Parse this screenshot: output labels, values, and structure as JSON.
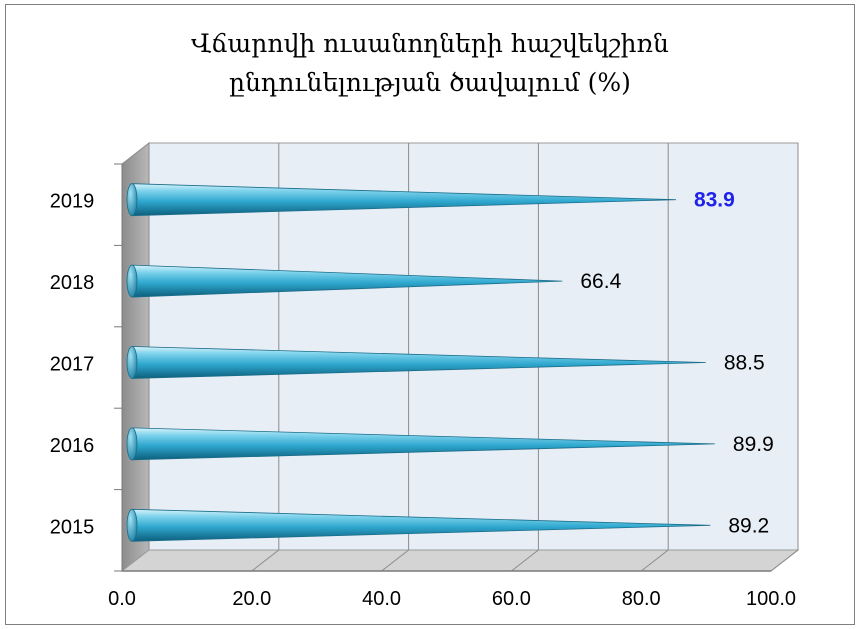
{
  "chart_data": {
    "type": "bar",
    "orientation": "horizontal",
    "bar_shape": "cone",
    "title_lines": [
      "Վճարովի ուսանողների հաշվեկշիռն",
      "ընդունելության ծավալում (%)"
    ],
    "categories": [
      "2015",
      "2016",
      "2017",
      "2018",
      "2019"
    ],
    "values": [
      89.2,
      89.9,
      88.5,
      66.4,
      83.9
    ],
    "value_labels": [
      "89.2",
      "89.9",
      "88.5",
      "66.4",
      "83.9"
    ],
    "highlighted_category": "2019",
    "highlight_color": "#1f22e8",
    "bar_color": "#2fa8cf",
    "xlim": [
      0,
      100
    ],
    "x_ticks": [
      "0.0",
      "20.0",
      "40.0",
      "60.0",
      "80.0",
      "100.0"
    ],
    "xlabel": "",
    "ylabel": "",
    "grid": true
  }
}
